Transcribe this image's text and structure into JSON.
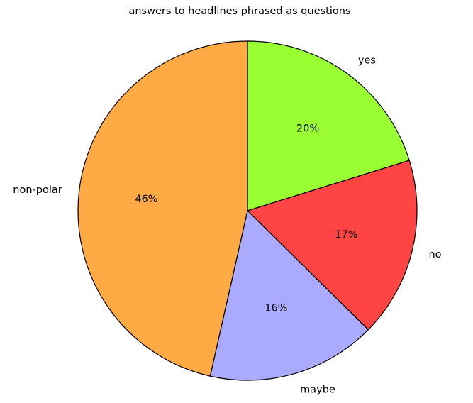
{
  "chart_data": {
    "type": "pie",
    "title": "answers to headlines phrased as questions",
    "categories": [
      "yes",
      "no",
      "maybe",
      "non-polar"
    ],
    "values": [
      20,
      17,
      16,
      46
    ],
    "percent_labels": [
      "20%",
      "17%",
      "16%",
      "46%"
    ],
    "colors": [
      "#99ff33",
      "#ff4444",
      "#aaaaff",
      "#ffaa44"
    ],
    "start_angle_deg": 90,
    "direction": "clockwise",
    "edge_color": "#000000",
    "legend": "none"
  }
}
